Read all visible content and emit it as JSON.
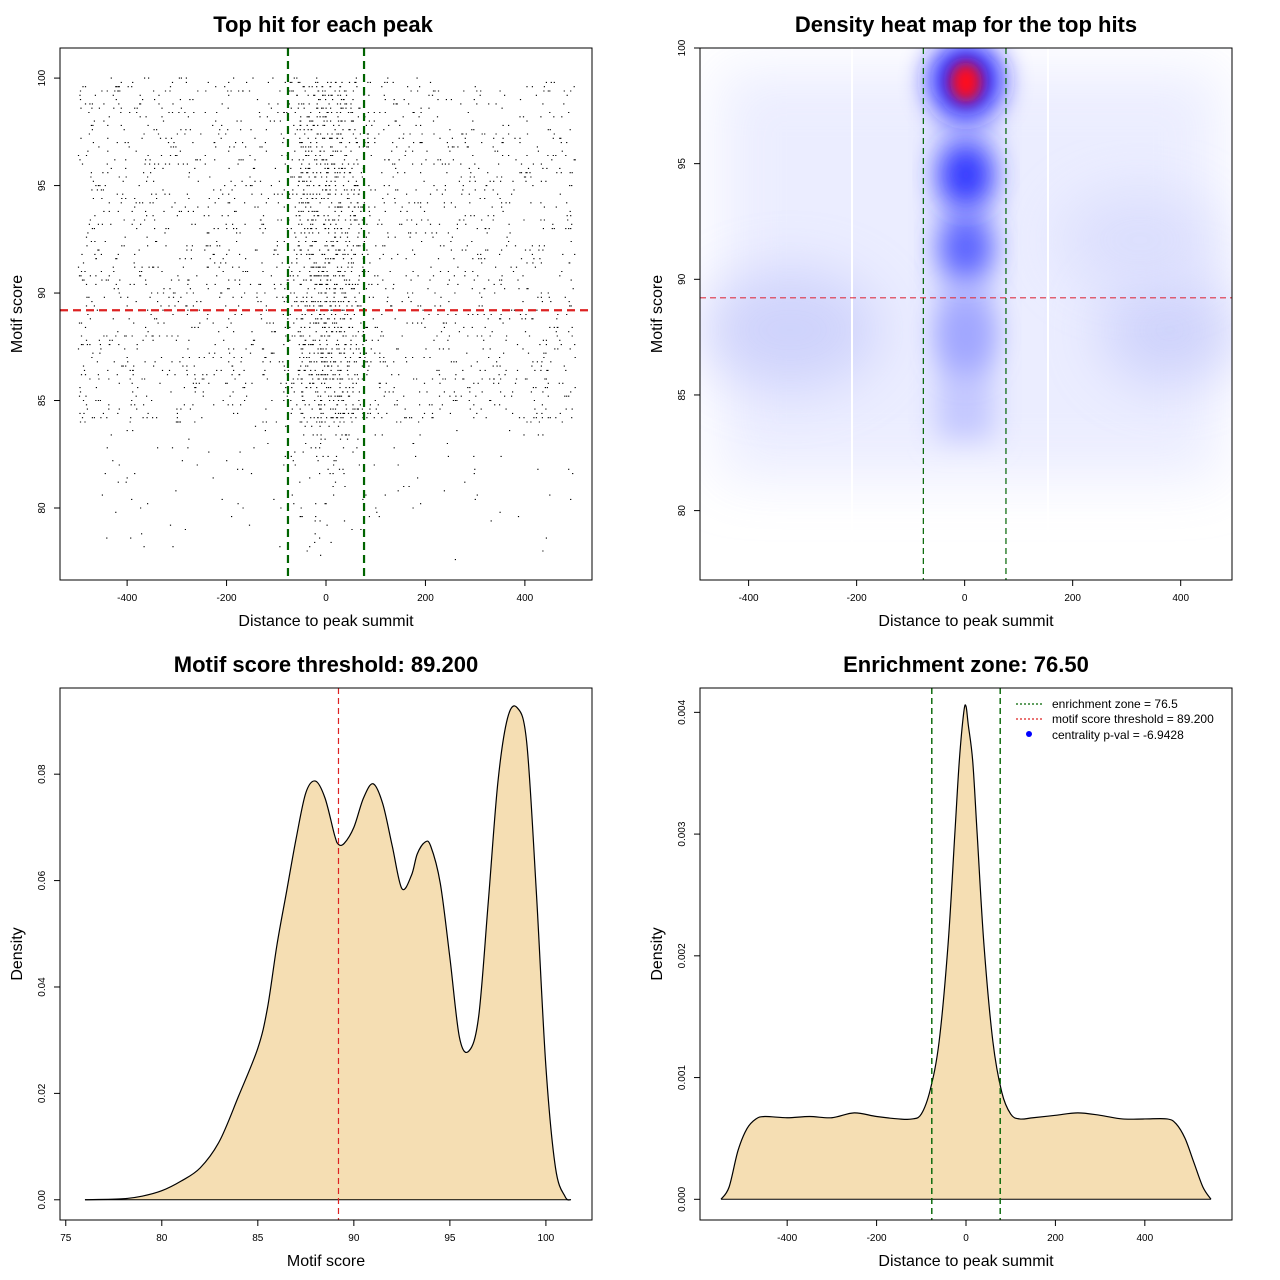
{
  "chart_data": [
    {
      "type": "scatter",
      "title": "Top hit for each peak",
      "xlabel": "Distance to peak summit",
      "ylabel": "Motif score",
      "xlim": [
        -535,
        535
      ],
      "ylim": [
        76.65,
        101.4
      ],
      "xticks": [
        -400,
        -200,
        0,
        200,
        400
      ],
      "yticks": [
        80,
        85,
        90,
        95,
        100
      ],
      "xtick_labels": [
        "-400",
        "-200",
        "0",
        "200",
        "400"
      ],
      "ytick_labels": [
        "80",
        "85",
        "90",
        "95",
        "100"
      ],
      "hlines": [
        {
          "y": 89.2,
          "color": "#dd2222",
          "style": "dashed"
        }
      ],
      "vlines": [
        {
          "x": -76.5,
          "color": "#006400",
          "style": "dashed"
        },
        {
          "x": 76.5,
          "color": "#006400",
          "style": "dashed"
        }
      ],
      "point_summary": "Thousands of points spanning x -500..500 and y ~77..100; densest at x≈0 and scores 86–100, sparse below 82.",
      "x_range": [
        -500,
        500
      ],
      "y_range": [
        77.3,
        100
      ],
      "seed": 7,
      "n_points": 9000
    },
    {
      "type": "heatmap",
      "title": "Density heat map for the top hits",
      "xlabel": "Distance to peak summit",
      "ylabel": "Motif score",
      "xlim": [
        -490,
        495
      ],
      "ylim": [
        77.0,
        100.0
      ],
      "xticks": [
        -400,
        -200,
        0,
        200,
        400
      ],
      "yticks": [
        80,
        85,
        90,
        95,
        100
      ],
      "xtick_labels": [
        "-400",
        "-200",
        "0",
        "200",
        "400"
      ],
      "ytick_labels": [
        "80",
        "85",
        "90",
        "95",
        "100"
      ],
      "hlines": [
        {
          "y": 89.2,
          "color": "#dd3344",
          "style": "dashed"
        }
      ],
      "vlines": [
        {
          "x": -76.5,
          "color": "#006400",
          "style": "dashed"
        },
        {
          "x": 76.5,
          "color": "#006400",
          "style": "dashed"
        }
      ],
      "hotspots": [
        {
          "x": 0,
          "y": 98.6,
          "intensity": "max",
          "color": "red"
        },
        {
          "x": 0,
          "y": 94.6,
          "intensity": "high",
          "color": "blue"
        },
        {
          "x": 0,
          "y": 91.5,
          "intensity": "medium",
          "color": "blue"
        },
        {
          "x": 0,
          "y": 88.0,
          "intensity": "low",
          "color": "blue"
        }
      ],
      "background": "faint blue haze over scores 82–100 at all distances"
    },
    {
      "type": "area",
      "title": "Motif score threshold: 89.200",
      "xlabel": "Motif score",
      "ylabel": "Density",
      "xlim": [
        74.7,
        102.4
      ],
      "ylim": [
        -0.0038,
        0.0962
      ],
      "xticks": [
        75,
        80,
        85,
        90,
        95,
        100
      ],
      "yticks": [
        0.0,
        0.02,
        0.04,
        0.06,
        0.08
      ],
      "xtick_labels": [
        "75",
        "80",
        "85",
        "90",
        "95",
        "100"
      ],
      "ytick_labels": [
        "0.00",
        "0.02",
        "0.04",
        "0.06",
        "0.08"
      ],
      "fill": "#f5deb3",
      "vlines": [
        {
          "x": 89.2,
          "color": "#dd2222",
          "style": "dashed"
        }
      ],
      "x": [
        76,
        78,
        79,
        80,
        81,
        82,
        83,
        84,
        85,
        85.5,
        86,
        86.5,
        87,
        87.5,
        88,
        88.5,
        89,
        89.2,
        89.5,
        90,
        90.5,
        91,
        91.5,
        92,
        92.5,
        93,
        93.3,
        93.7,
        94,
        94.5,
        95,
        95.5,
        96,
        96.5,
        97,
        97.5,
        98,
        98.5,
        99,
        99.5,
        100,
        100.5,
        101,
        101.3
      ],
      "y": [
        0.0,
        0.0002,
        0.0007,
        0.0017,
        0.0035,
        0.006,
        0.011,
        0.0195,
        0.0285,
        0.036,
        0.048,
        0.058,
        0.068,
        0.0765,
        0.0787,
        0.0755,
        0.0685,
        0.0668,
        0.067,
        0.07,
        0.0755,
        0.0782,
        0.0745,
        0.0665,
        0.0585,
        0.061,
        0.065,
        0.0672,
        0.0665,
        0.0595,
        0.0455,
        0.0305,
        0.028,
        0.0345,
        0.056,
        0.0785,
        0.0905,
        0.0925,
        0.086,
        0.058,
        0.025,
        0.006,
        0.0006,
        0.0
      ]
    },
    {
      "type": "area",
      "title": "Enrichment zone: 76.50",
      "xlabel": "Distance to peak summit",
      "ylabel": "Density",
      "xlim": [
        -595,
        595
      ],
      "ylim": [
        -0.00017,
        0.0042
      ],
      "xticks": [
        -400,
        -200,
        0,
        200,
        400
      ],
      "yticks": [
        0.0,
        0.001,
        0.002,
        0.003,
        0.004
      ],
      "xtick_labels": [
        "-400",
        "-200",
        "0",
        "200",
        "400"
      ],
      "ytick_labels": [
        "0.000",
        "0.001",
        "0.002",
        "0.003",
        "0.004"
      ],
      "fill": "#f5deb3",
      "vlines": [
        {
          "x": -76.5,
          "color": "#006400",
          "style": "dashed"
        },
        {
          "x": 76.5,
          "color": "#006400",
          "style": "dashed"
        }
      ],
      "x": [
        -548,
        -530,
        -510,
        -490,
        -470,
        -450,
        -400,
        -350,
        -300,
        -250,
        -200,
        -150,
        -120,
        -100,
        -80,
        -60,
        -40,
        -25,
        -15,
        -5,
        0,
        5,
        15,
        25,
        40,
        60,
        80,
        100,
        120,
        150,
        200,
        250,
        300,
        350,
        400,
        450,
        470,
        490,
        510,
        530,
        548
      ],
      "y": [
        0.0,
        0.0001,
        0.0004,
        0.00058,
        0.00066,
        0.00068,
        0.00067,
        0.00068,
        0.00067,
        0.00071,
        0.00068,
        0.00066,
        0.00066,
        0.0007,
        0.0009,
        0.0013,
        0.0021,
        0.003,
        0.0036,
        0.004,
        0.00405,
        0.0039,
        0.0036,
        0.003,
        0.0021,
        0.0013,
        0.00088,
        0.0007,
        0.00066,
        0.00067,
        0.00069,
        0.00071,
        0.00069,
        0.00066,
        0.00066,
        0.00066,
        0.00062,
        0.0005,
        0.0003,
        0.0001,
        0.0
      ],
      "legend": [
        {
          "label": "enrichment zone = 76.5",
          "color": "#006400",
          "style": "dotted"
        },
        {
          "label": "motif score threshold = 89.200",
          "color": "#dd2222",
          "style": "dotted"
        },
        {
          "label": "centrality p-val = -6.9428",
          "color": "#0000ff",
          "style": "point"
        }
      ]
    }
  ]
}
